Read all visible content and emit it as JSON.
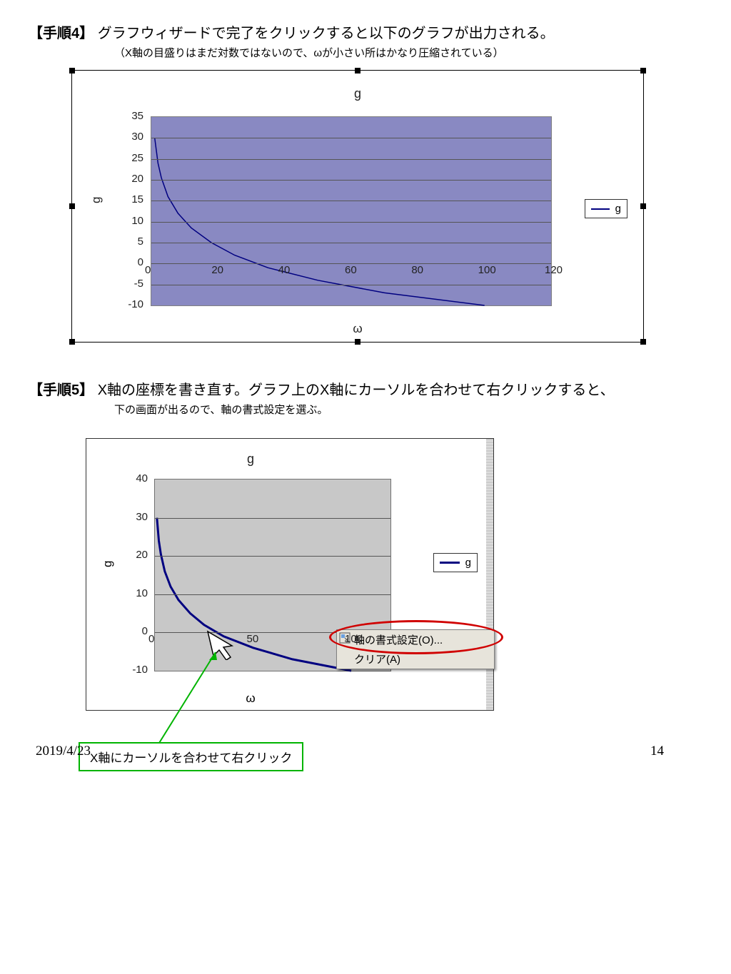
{
  "step4": {
    "marker": "【手順4】",
    "text": "グラフウィザードで完了をクリックすると以下のグラフが出力される。",
    "subtext": "（X軸の目盛りはまだ対数ではないので、ωが小さい所はかなり圧縮されている）"
  },
  "step5": {
    "marker": "【手順5】",
    "text": "X軸の座標を書き直す。グラフ上のX軸にカーソルを合わせて右クリックすると、",
    "subtext": "下の画面が出るので、軸の書式設定を選ぶ。"
  },
  "chart1": {
    "type": "line",
    "title": "g",
    "ylabel": "g",
    "xlabel": "ω",
    "legend_label": "g",
    "plot_bg": "#8989c2",
    "frame_bg": "#ffffff",
    "grid_color": "#555555",
    "line_color": "#000080",
    "line_width": 1.5,
    "yticks": [
      -10,
      -5,
      0,
      5,
      10,
      15,
      20,
      25,
      30,
      35
    ],
    "ylim": [
      -10,
      35
    ],
    "xticks": [
      0,
      20,
      40,
      60,
      80,
      100,
      120
    ],
    "xlim": [
      0,
      120
    ],
    "points_x": [
      1,
      2,
      3,
      5,
      8,
      12,
      18,
      25,
      35,
      50,
      70,
      100
    ],
    "points_y": [
      30,
      24,
      20.5,
      16,
      12,
      8.5,
      5,
      2,
      -1,
      -4,
      -7,
      -10
    ]
  },
  "chart2": {
    "type": "line",
    "title": "g",
    "ylabel": "g",
    "xlabel": "ω",
    "legend_label": "g",
    "plot_bg": "#c8c8c8",
    "frame_bg": "#ffffff",
    "grid_color": "#555555",
    "line_color": "#000080",
    "line_width": 3,
    "yticks": [
      -10,
      0,
      10,
      20,
      30,
      40
    ],
    "ylim": [
      -10,
      40
    ],
    "xticks": [
      0,
      50,
      100
    ],
    "xlim": [
      0,
      120
    ],
    "points_x": [
      1,
      2,
      3,
      5,
      8,
      12,
      18,
      25,
      35,
      50,
      70,
      100
    ],
    "points_y": [
      30,
      24,
      20.5,
      16,
      12,
      8.5,
      5,
      2,
      -1,
      -4,
      -7,
      -10
    ],
    "context_menu": {
      "item1": "軸の書式設定(O)...",
      "item2": "クリア(A)"
    }
  },
  "callout": "X軸にカーソルを合わせて右クリック",
  "callout_border": "#00b400",
  "ellipse_border": "#d00000",
  "footer_date": "2019/4/23",
  "footer_page": "14"
}
